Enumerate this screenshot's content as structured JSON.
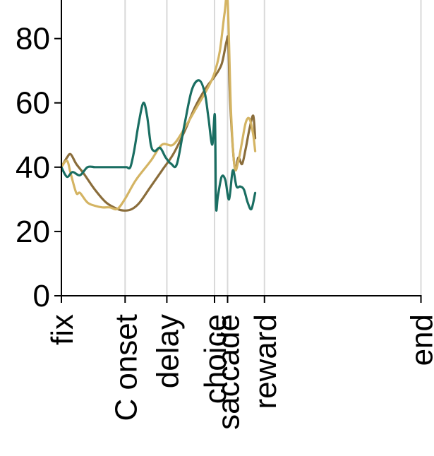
{
  "chart_data": {
    "type": "line",
    "title": "",
    "xlabel": "",
    "ylabel": "",
    "ylim": [
      0,
      92
    ],
    "xlim": [
      0,
      100
    ],
    "y_ticks": [
      0,
      20,
      40,
      60,
      80
    ],
    "x_event_ticks": [
      {
        "label": "fix",
        "x": 0
      },
      {
        "label": "C onset",
        "x": 17.1
      },
      {
        "label": "delay",
        "x": 28.3
      },
      {
        "label": "choice",
        "x": 41.1
      },
      {
        "label": "saccade",
        "x": 44.6
      },
      {
        "label": "reward",
        "x": 54.5
      },
      {
        "label": "end",
        "x": 96.5
      }
    ],
    "grid": "vertical lines at event ticks",
    "series": [
      {
        "color": "#8a6d3b",
        "x": [
          0,
          1.5,
          2.5,
          4,
          6,
          9,
          12,
          15,
          17,
          19,
          21,
          24,
          27,
          30,
          33,
          36,
          39,
          41,
          43,
          44.3,
          44.8,
          45.3,
          46.5,
          47.5,
          48.5,
          49.5,
          50.5,
          51.5,
          52
        ],
        "y": [
          40,
          43,
          44,
          41,
          38,
          33,
          29,
          27,
          26.5,
          27,
          29,
          34,
          39,
          44,
          51,
          59,
          65,
          68,
          72,
          79,
          79,
          60,
          40,
          43,
          41,
          46,
          52,
          56,
          49
        ]
      },
      {
        "color": "#d4b463",
        "x": [
          0,
          1.5,
          2.5,
          4,
          5,
          7,
          9,
          11,
          13,
          15,
          17,
          20,
          24,
          27,
          30,
          33,
          36,
          39,
          41,
          42.5,
          43.8,
          44.6,
          45.5,
          46.5,
          47.5,
          48.5,
          49.5,
          50.5,
          51.5,
          52
        ],
        "y": [
          40,
          42,
          38,
          32,
          32,
          29,
          28,
          27.5,
          27.5,
          27,
          30,
          36,
          42,
          47,
          47,
          52,
          58,
          64,
          69,
          76,
          88,
          92,
          58,
          40,
          42,
          48,
          54,
          55,
          50,
          45
        ]
      },
      {
        "color": "#1a6e62",
        "x": [
          0,
          1.5,
          3,
          5,
          7,
          9,
          11,
          13,
          15,
          16.5,
          17.5,
          18.5,
          19.5,
          20.8,
          22,
          23,
          24,
          25,
          26.5,
          28,
          29.5,
          31,
          33,
          35,
          37,
          38.5,
          39.5,
          40.5,
          41.2,
          41.5,
          42,
          43,
          44,
          45,
          46,
          47,
          48,
          49,
          50,
          51,
          52
        ],
        "y": [
          40,
          37,
          38.5,
          37.5,
          40,
          40,
          40,
          40,
          40,
          40,
          40,
          40,
          45,
          54,
          60,
          56,
          47,
          45,
          46,
          43,
          41,
          41,
          53,
          64,
          67,
          63,
          55,
          47,
          56,
          28,
          31,
          37,
          36,
          30,
          39,
          34,
          34,
          33,
          29,
          27,
          32
        ]
      }
    ]
  }
}
